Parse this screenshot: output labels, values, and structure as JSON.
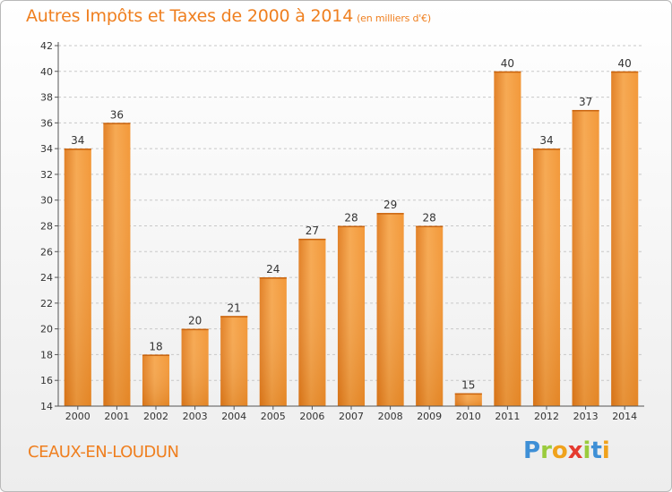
{
  "title": "Autres Impôts et Taxes de 2000 à 2014",
  "subtitle": "(en milliers d'€)",
  "commune": "CEAUX-EN-LOUDUN",
  "logo": {
    "letters": [
      "P",
      "r",
      "o",
      "x",
      "i",
      "t",
      "i"
    ],
    "colors": [
      "#3e8fd6",
      "#9acb3c",
      "#f0a21c",
      "#e53a2f",
      "#9acb3c",
      "#3e8fd6",
      "#f0a21c"
    ]
  },
  "colors": {
    "bar": "#f39b3c",
    "bar_light": "#f6ae5c",
    "bar_dark": "#d86f12",
    "title": "#ef7f1f",
    "grid": "#c8c8c8"
  },
  "chart_data": {
    "type": "bar",
    "categories": [
      "2000",
      "2001",
      "2002",
      "2003",
      "2004",
      "2005",
      "2006",
      "2007",
      "2008",
      "2009",
      "2010",
      "2011",
      "2012",
      "2013",
      "2014"
    ],
    "values": [
      34,
      36,
      18,
      20,
      21,
      24,
      27,
      28,
      29,
      28,
      15,
      40,
      34,
      37,
      40
    ],
    "ylim": [
      14,
      42
    ],
    "yticks": [
      14,
      16,
      18,
      20,
      22,
      24,
      26,
      28,
      30,
      32,
      34,
      36,
      38,
      40,
      42
    ],
    "grid": true
  }
}
